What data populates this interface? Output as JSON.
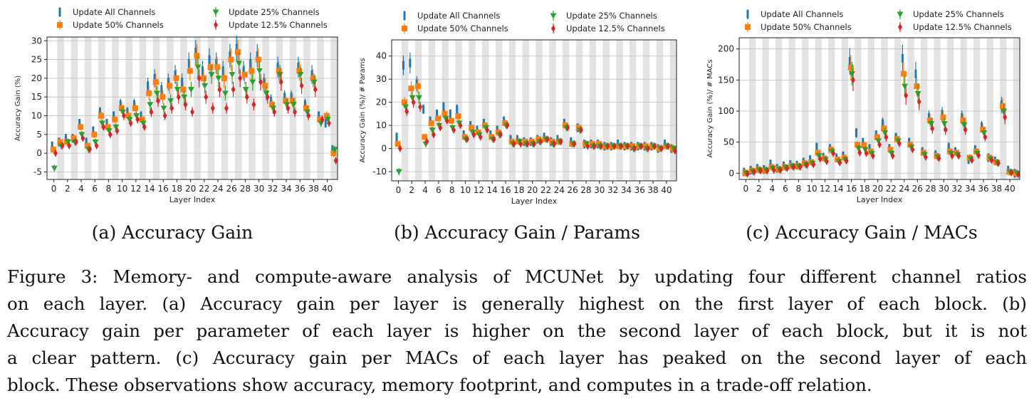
{
  "legend_labels": [
    "Update All Channels",
    "Update 50% Channels",
    "Update 25% Channels",
    "Update 12.5% Channels"
  ],
  "series_colors": [
    "#1f77b4",
    "#ff7f0e",
    "#2ca02c",
    "#d62728"
  ],
  "subcaptions": [
    "(a) Accuracy Gain",
    "(b) Accuracy Gain / Params",
    "(c) Accuracy Gain / MACs"
  ],
  "figure_caption": [
    "Figure 3: Memory- and compute-aware analysis of MCUNet by updating four different channel ratios",
    "on each layer. (a) Accuracy gain per layer is generally highest on the first layer of each block. (b)",
    "Accuracy gain per parameter of each layer is higher on the second layer of each block, but it is not",
    "a clear pattern. (c) Accuracy gain per MACs of each layer has peaked on the second layer of each",
    "block. These observations show accuracy, memory footprint, and computes in a trade-off relation."
  ],
  "chart_data": [
    {
      "type": "scatter",
      "xlabel": "Layer Index",
      "ylabel": "Accuracy Gain (%)",
      "xlim": [
        -1,
        41.5
      ],
      "ylim": [
        -7,
        31
      ],
      "yticks": [
        -5,
        0,
        5,
        10,
        15,
        20,
        25,
        30
      ],
      "xticks": [
        0,
        2,
        4,
        6,
        8,
        10,
        12,
        14,
        16,
        18,
        20,
        22,
        24,
        26,
        28,
        30,
        32,
        34,
        36,
        38,
        40
      ],
      "grid": true,
      "legend": "top",
      "error_bars": true,
      "x": [
        0,
        1,
        2,
        3,
        4,
        5,
        6,
        7,
        8,
        9,
        10,
        11,
        12,
        13,
        14,
        15,
        16,
        17,
        18,
        19,
        20,
        21,
        22,
        23,
        24,
        25,
        26,
        27,
        28,
        29,
        30,
        31,
        32,
        33,
        34,
        35,
        36,
        37,
        38,
        39,
        40,
        41
      ],
      "series": [
        {
          "name": "Update All Channels",
          "values": [
            2,
            3,
            4,
            4,
            8,
            3,
            6,
            11,
            8,
            10,
            13,
            11,
            13,
            10,
            18,
            20,
            17,
            19,
            21,
            19,
            24,
            27,
            22,
            25,
            24,
            22,
            26,
            28,
            22,
            24,
            26,
            19,
            14,
            23,
            15,
            15,
            23,
            13,
            21,
            10,
            8,
            1
          ]
        },
        {
          "name": "Update 50% Channels",
          "values": [
            1,
            3,
            3,
            4,
            7,
            2,
            5,
            10,
            7,
            9,
            12,
            10,
            12,
            9,
            16,
            19,
            15,
            18,
            20,
            17,
            22,
            26,
            20,
            23,
            23,
            20,
            25,
            27,
            21,
            22,
            25,
            18,
            13,
            22,
            14,
            14,
            22,
            12,
            20,
            9,
            10,
            0
          ]
        },
        {
          "name": "Update 25% Channels",
          "values": [
            -4,
            2,
            3,
            3,
            5,
            1,
            3,
            8,
            6,
            7,
            11,
            9,
            10,
            8,
            13,
            16,
            12,
            14,
            17,
            15,
            17,
            23,
            18,
            21,
            20,
            16,
            21,
            24,
            17,
            19,
            22,
            16,
            12,
            21,
            13,
            13,
            21,
            11,
            19,
            8,
            9,
            1
          ]
        },
        {
          "name": "Update 12.5% Channels",
          "values": [
            0,
            2,
            2,
            3,
            4,
            1,
            2,
            7,
            5,
            6,
            10,
            8,
            9,
            7,
            11,
            14,
            10,
            12,
            15,
            13,
            11,
            20,
            15,
            12,
            17,
            12,
            17,
            20,
            15,
            13,
            19,
            15,
            11,
            19,
            12,
            11,
            18,
            10,
            17,
            9,
            8,
            -2
          ]
        }
      ]
    },
    {
      "type": "scatter",
      "xlabel": "Layer Index",
      "ylabel": "Accuracy Gain (%)/ # Params",
      "xlim": [
        -1,
        41.5
      ],
      "ylim": [
        -14,
        47
      ],
      "yticks": [
        -10,
        0,
        10,
        20,
        30,
        40
      ],
      "xticks": [
        0,
        2,
        4,
        6,
        8,
        10,
        12,
        14,
        16,
        18,
        20,
        22,
        24,
        26,
        28,
        30,
        32,
        34,
        36,
        38,
        40
      ],
      "grid": true,
      "legend": "top",
      "error_bars": true,
      "x": [
        0,
        1,
        2,
        3,
        4,
        5,
        6,
        7,
        8,
        9,
        10,
        11,
        12,
        13,
        14,
        15,
        16,
        17,
        18,
        19,
        20,
        21,
        22,
        23,
        24,
        25,
        26,
        27,
        28,
        29,
        30,
        31,
        32,
        33,
        34,
        35,
        36,
        37,
        38,
        39,
        40,
        41
      ],
      "series": [
        {
          "name": "Update All Channels",
          "values": [
            5,
            36,
            37,
            28,
            17,
            12,
            15,
            18,
            15,
            17,
            6,
            10,
            8,
            11,
            6,
            8,
            12,
            4,
            4,
            3,
            3,
            4,
            5,
            3,
            4,
            11,
            3,
            9,
            2,
            2,
            2,
            1,
            1,
            2,
            1,
            1,
            1,
            1,
            1,
            0,
            2,
            0
          ]
        },
        {
          "name": "Update 50% Channels",
          "values": [
            2,
            20,
            26,
            27,
            5,
            11,
            13,
            15,
            12,
            14,
            5,
            9,
            7,
            10,
            5,
            7,
            11,
            3,
            3,
            3,
            3,
            4,
            4,
            3,
            3,
            10,
            2,
            9,
            2,
            2,
            2,
            1,
            1,
            1,
            1,
            1,
            1,
            1,
            1,
            0,
            1,
            0
          ]
        },
        {
          "name": "Update 25% Channels",
          "values": [
            -10,
            18,
            22,
            22,
            2,
            8,
            10,
            13,
            9,
            11,
            4,
            7,
            6,
            9,
            4,
            6,
            10,
            2,
            3,
            2,
            2,
            3,
            4,
            2,
            3,
            9,
            2,
            8,
            2,
            1,
            1,
            1,
            1,
            1,
            1,
            0,
            1,
            0,
            1,
            0,
            1,
            0
          ]
        },
        {
          "name": "Update 12.5% Channels",
          "values": [
            0,
            16,
            20,
            18,
            3,
            6,
            9,
            12,
            8,
            10,
            4,
            6,
            5,
            8,
            4,
            6,
            10,
            2,
            2,
            2,
            2,
            3,
            4,
            2,
            3,
            9,
            2,
            8,
            1,
            1,
            1,
            1,
            1,
            1,
            1,
            0,
            1,
            0,
            1,
            0,
            1,
            -1
          ]
        }
      ]
    },
    {
      "type": "scatter",
      "xlabel": "Layer Index",
      "ylabel": "Accuracy Gain (%)/ # MACs",
      "xlim": [
        -1,
        41.5
      ],
      "ylim": [
        -10,
        218
      ],
      "yticks": [
        0,
        50,
        100,
        150,
        200
      ],
      "xticks": [
        0,
        2,
        4,
        6,
        8,
        10,
        12,
        14,
        16,
        18,
        20,
        22,
        24,
        26,
        28,
        30,
        32,
        34,
        36,
        38,
        40
      ],
      "grid": true,
      "legend": "top",
      "error_bars": true,
      "x": [
        0,
        1,
        2,
        3,
        4,
        5,
        6,
        7,
        8,
        9,
        10,
        11,
        12,
        13,
        14,
        15,
        16,
        17,
        18,
        19,
        20,
        21,
        22,
        23,
        24,
        25,
        26,
        27,
        28,
        29,
        30,
        31,
        32,
        33,
        34,
        35,
        36,
        37,
        38,
        39,
        40,
        41
      ],
      "series": [
        {
          "name": "Update All Channels",
          "values": [
            2,
            5,
            8,
            6,
            15,
            8,
            12,
            14,
            13,
            18,
            22,
            42,
            26,
            40,
            25,
            28,
            180,
            65,
            50,
            40,
            62,
            80,
            40,
            58,
            185,
            50,
            160,
            35,
            90,
            30,
            95,
            42,
            35,
            90,
            22,
            38,
            75,
            25,
            20,
            110,
            5,
            0
          ]
        },
        {
          "name": "Update 50% Channels",
          "values": [
            1,
            4,
            6,
            5,
            10,
            7,
            10,
            12,
            12,
            16,
            18,
            33,
            24,
            38,
            22,
            25,
            170,
            46,
            45,
            35,
            58,
            72,
            38,
            55,
            160,
            46,
            140,
            33,
            85,
            28,
            90,
            35,
            33,
            85,
            25,
            35,
            70,
            25,
            18,
            108,
            2,
            0
          ]
        },
        {
          "name": "Update 25% Channels",
          "values": [
            0,
            3,
            5,
            5,
            8,
            6,
            9,
            11,
            11,
            14,
            16,
            28,
            22,
            35,
            19,
            22,
            160,
            40,
            38,
            32,
            52,
            65,
            32,
            52,
            140,
            42,
            128,
            30,
            80,
            26,
            80,
            32,
            30,
            78,
            23,
            32,
            65,
            23,
            17,
            100,
            2,
            0
          ]
        },
        {
          "name": "Update 12.5% Channels",
          "values": [
            -1,
            2,
            4,
            4,
            5,
            5,
            8,
            10,
            10,
            13,
            14,
            23,
            19,
            32,
            17,
            20,
            150,
            33,
            32,
            28,
            46,
            58,
            28,
            48,
            125,
            38,
            115,
            26,
            72,
            24,
            70,
            28,
            28,
            70,
            21,
            29,
            58,
            21,
            16,
            90,
            1,
            -2
          ]
        }
      ]
    }
  ]
}
